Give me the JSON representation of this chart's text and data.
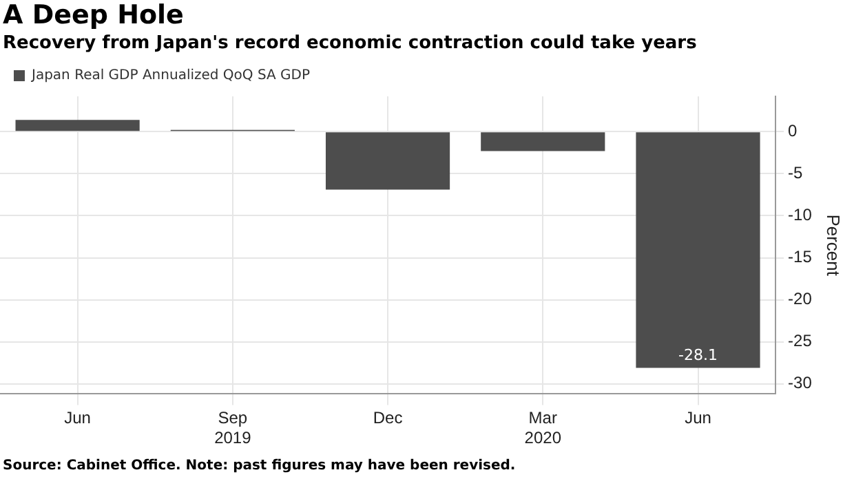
{
  "chart_data": {
    "type": "bar",
    "title": "A Deep Hole",
    "subtitle": "Recovery from Japan's record economic contraction could take years",
    "categories": [
      "Jun",
      "Sep\n2019",
      "Dec",
      "Mar\n2020",
      "Jun"
    ],
    "series": [
      {
        "name": "Japan Real GDP Annualized QoQ SA GDP",
        "color": "#4d4d4d",
        "values": [
          1.4,
          0.2,
          -6.9,
          -2.3,
          -28.1
        ],
        "value_labels": [
          null,
          null,
          null,
          null,
          "-28.1"
        ]
      }
    ],
    "ylabel": "Percent",
    "ylim": [
      -31.2,
      4.2
    ],
    "yticks": [
      0,
      -5,
      -10,
      -15,
      -20,
      -25,
      -30
    ],
    "grid": true,
    "legend": "top left",
    "annotations": [
      "Source: Cabinet Office. Note: past figures may have been revised."
    ]
  }
}
